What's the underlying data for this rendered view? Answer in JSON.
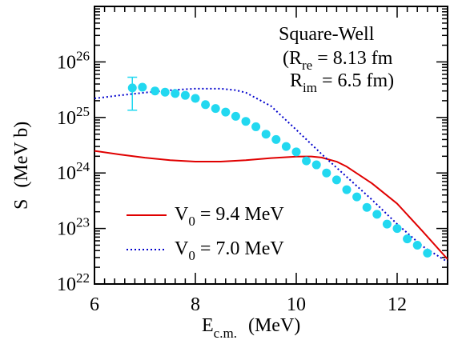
{
  "chart_data": {
    "type": "line",
    "title": "Square-Well",
    "annotation": {
      "line1_prefix": "(R",
      "line1_sub": "re",
      "line1_suffix": " = 8.13 fm",
      "line2_prefix": "R",
      "line2_sub": "im",
      "line2_suffix": " = 6.5 fm)"
    },
    "xlabel": {
      "main": "E",
      "sub": "c.m.",
      "unit": "(MeV)"
    },
    "ylabel": {
      "main": "S",
      "unit": "(MeV b)"
    },
    "xlim": [
      6,
      13
    ],
    "ylim": [
      1e+22,
      1e+27
    ],
    "y_scale": "log",
    "x_ticks": [
      6,
      8,
      10,
      12
    ],
    "x_tick_labels": [
      "6",
      "8",
      "10",
      "12"
    ],
    "y_ticks": [
      1e+22,
      1e+23,
      1e+24,
      1e+25,
      1e+26
    ],
    "y_tick_labels": [
      {
        "base": "10",
        "exp": "22"
      },
      {
        "base": "10",
        "exp": "23"
      },
      {
        "base": "10",
        "exp": "24"
      },
      {
        "base": "10",
        "exp": "25"
      },
      {
        "base": "10",
        "exp": "26"
      }
    ],
    "legend_position": "bottom-left",
    "series": [
      {
        "name": "V0 = 9.4 MeV",
        "legend_prefix": "V",
        "legend_sub": "0",
        "legend_suffix": " = 9.4 MeV",
        "color": "#e00000",
        "style": "solid",
        "x": [
          6.0,
          6.5,
          7.0,
          7.5,
          8.0,
          8.5,
          9.0,
          9.5,
          10.0,
          10.3,
          10.5,
          10.8,
          11.0,
          11.5,
          12.0,
          12.5,
          13.0
        ],
        "y": [
          2.5e+24,
          2.15e+24,
          1.88e+24,
          1.7e+24,
          1.6e+24,
          1.6e+24,
          1.7e+24,
          1.85e+24,
          1.97e+24,
          1.98e+24,
          1.9e+24,
          1.6e+24,
          1.3e+24,
          6.5e+23,
          2.8e+23,
          9e+22,
          2.8e+22
        ]
      },
      {
        "name": "V0 = 7.0 MeV",
        "legend_prefix": "V",
        "legend_sub": "0",
        "legend_suffix": " = 7.0 MeV",
        "color": "#0000cc",
        "style": "dotted",
        "x": [
          6.0,
          6.5,
          7.0,
          7.5,
          8.0,
          8.5,
          8.8,
          9.0,
          9.5,
          10.0,
          10.5,
          11.0,
          11.5,
          12.0,
          12.5,
          13.0
        ],
        "y": [
          2.2e+25,
          2.5e+25,
          2.8e+25,
          3.1e+25,
          3.3e+25,
          3.3e+25,
          3.1e+25,
          2.8e+25,
          1.6e+25,
          6e+24,
          2.2e+24,
          8.5e+23,
          3.3e+23,
          1.2e+23,
          4.8e+22,
          2.5e+22
        ]
      },
      {
        "name": "data",
        "color": "#22d8f0",
        "style": "markers",
        "x": [
          6.75,
          6.95,
          7.2,
          7.4,
          7.6,
          7.8,
          8.0,
          8.2,
          8.4,
          8.6,
          8.8,
          9.0,
          9.2,
          9.4,
          9.6,
          9.8,
          10.0,
          10.2,
          10.4,
          10.6,
          10.8,
          11.0,
          11.2,
          11.4,
          11.6,
          11.8,
          12.0,
          12.2,
          12.4,
          12.6
        ],
        "y": [
          3.4e+25,
          3.5e+25,
          3e+25,
          2.85e+25,
          2.7e+25,
          2.5e+25,
          2.2e+25,
          1.7e+25,
          1.45e+25,
          1.25e+25,
          1.05e+25,
          8.5e+24,
          6.8e+24,
          5e+24,
          4e+24,
          3e+24,
          2.4e+24,
          1.65e+24,
          1.4e+24,
          1e+24,
          7.5e+23,
          5e+23,
          3.7e+23,
          2.4e+23,
          1.8e+23,
          1.2e+23,
          1e+23,
          6.5e+22,
          5e+22,
          3.6e+22
        ],
        "error_point": {
          "x": 6.75,
          "y": 3.4e+25,
          "y_low": 1.35e+25,
          "y_high": 5.3e+25
        }
      }
    ]
  }
}
